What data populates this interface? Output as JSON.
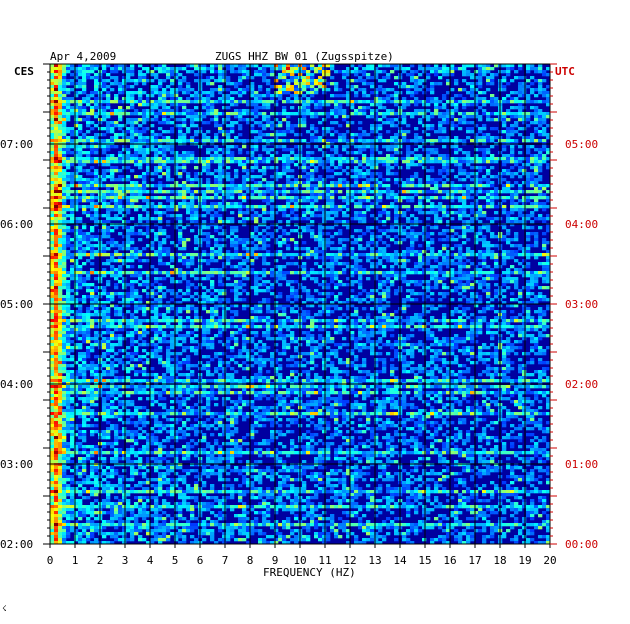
{
  "header": {
    "date": "Apr 4,2009",
    "station": "ZUGS HHZ BW 01 (Zugsspitze)"
  },
  "left_zone_label": "CES",
  "right_zone_label": "UTC",
  "corner_mark": "☇",
  "colors": {
    "left_labels": "#000000",
    "right_labels": "#cc0000",
    "background_low": "#0000a0",
    "grid": "#000000"
  },
  "chart_data": {
    "type": "heatmap",
    "title": "ZUGS HHZ BW 01 (Zugsspitze)",
    "subtitle": "Apr 4,2009",
    "xlabel": "FREQUENCY (HZ)",
    "x_ticks": [
      "0",
      "1",
      "2",
      "3",
      "4",
      "5",
      "6",
      "7",
      "8",
      "9",
      "10",
      "11",
      "12",
      "13",
      "14",
      "15",
      "16",
      "17",
      "18",
      "19",
      "20"
    ],
    "xlim": [
      0,
      20
    ],
    "left_time_ticks": [
      "07:00",
      "06:00",
      "05:00",
      "04:00",
      "03:00",
      "02:00"
    ],
    "right_time_ticks": [
      "05:00",
      "04:00",
      "03:00",
      "02:00",
      "01:00",
      "00:00"
    ],
    "time_range_utc": [
      "00:00",
      "06:00"
    ],
    "grid": true,
    "colormap": "jet"
  }
}
